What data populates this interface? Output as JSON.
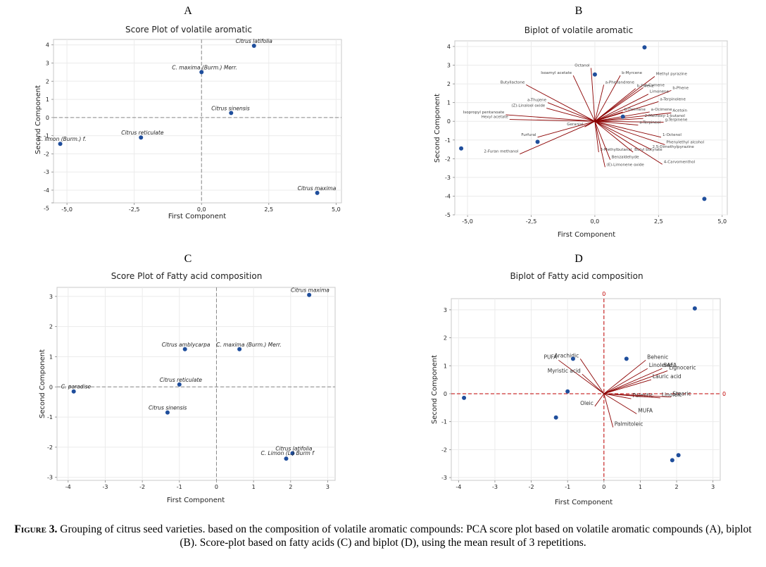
{
  "caption": {
    "label": "Figure 3.",
    "text": "Grouping of citrus seed varieties. based on the composition of volatile aromatic compounds: PCA score plot based on volatile aromatic compounds (A), biplot (B). Score-plot based on fatty acids (C) and biplot (D), using the mean result of 3 repetitions."
  },
  "chart_data": [
    {
      "panel": "A",
      "type": "scatter",
      "title": "Score Plot of volatile aromatic",
      "xlabel": "First Component",
      "ylabel": "Second Component",
      "xlim": [
        -5.5,
        5.2
      ],
      "ylim": [
        -4.7,
        4.3
      ],
      "xticks": [
        -5.0,
        -2.5,
        0.0,
        2.5,
        5.0
      ],
      "xtick_labels": [
        "-5,0",
        "-2,5",
        "0,0",
        "2,5",
        "5,0"
      ],
      "yticks": [
        -5,
        -4,
        -3,
        -2,
        -1,
        0,
        1,
        2,
        3,
        4
      ],
      "grid": true,
      "reference_lines": {
        "x": 0,
        "y": 0
      },
      "points": [
        {
          "label": "Citrus latifolia",
          "x": 1.95,
          "y": 3.95
        },
        {
          "label": "C. maxima (Burm.) Merr.",
          "x": 0.0,
          "y": 2.5
        },
        {
          "label": "Citrus sinensis",
          "x": 1.1,
          "y": 0.25
        },
        {
          "label": "Citrus reticulate",
          "x": -2.25,
          "y": -1.1
        },
        {
          "label": "C. limon (Burm.) f.",
          "x": -5.25,
          "y": -1.45
        },
        {
          "label": "Citrus maxima",
          "x": 4.3,
          "y": -4.15
        }
      ]
    },
    {
      "panel": "B",
      "type": "scatter",
      "title": "Biplot of volatile aromatic",
      "xlabel": "First Component",
      "ylabel": "Second Component",
      "xlim": [
        -5.5,
        5.2
      ],
      "ylim": [
        -5.0,
        4.3
      ],
      "xticks": [
        -5.0,
        -2.5,
        0.0,
        2.5,
        5.0
      ],
      "xtick_labels": [
        "-5,0",
        "-2,5",
        "0,0",
        "2,5",
        "5,0"
      ],
      "yticks": [
        -5,
        -4,
        -3,
        -2,
        -1,
        0,
        1,
        2,
        3,
        4
      ],
      "grid": true,
      "points": [
        {
          "x": 1.95,
          "y": 3.95
        },
        {
          "x": 0.0,
          "y": 2.5
        },
        {
          "x": 1.1,
          "y": 0.25
        },
        {
          "x": -2.25,
          "y": -1.1
        },
        {
          "x": -5.25,
          "y": -1.45
        },
        {
          "x": 4.3,
          "y": -4.15
        }
      ],
      "loadings": [
        {
          "label": "Octanol",
          "x": -0.15,
          "y": 2.85
        },
        {
          "label": "Isoamyl acetate",
          "x": -0.85,
          "y": 2.45
        },
        {
          "label": "b-Myrcene",
          "x": 1.0,
          "y": 2.45
        },
        {
          "label": "Methyl pyrazine",
          "x": 2.35,
          "y": 2.4
        },
        {
          "label": "a-Phellandrene",
          "x": 0.35,
          "y": 1.95
        },
        {
          "label": "Butyllactone",
          "x": -2.7,
          "y": 1.95
        },
        {
          "label": "b-Pinene",
          "x": 1.6,
          "y": 1.75
        },
        {
          "label": "p-Cymene",
          "x": 1.9,
          "y": 1.8
        },
        {
          "label": "b-Phene",
          "x": 3.0,
          "y": 1.65
        },
        {
          "label": "Limonene",
          "x": 2.1,
          "y": 1.45
        },
        {
          "label": "a-Terpinolene",
          "x": 2.5,
          "y": 1.05
        },
        {
          "label": "a-Thujene",
          "x": -1.85,
          "y": 1.0
        },
        {
          "label": "(Z)-Linalool oxide",
          "x": -1.9,
          "y": 0.7
        },
        {
          "label": "Isopropyl pentanoate",
          "x": -3.5,
          "y": 0.35
        },
        {
          "label": "Hexyl acetate",
          "x": -3.35,
          "y": 0.1
        },
        {
          "label": "Geranial",
          "x": -0.4,
          "y": -0.3
        },
        {
          "label": "b-Ocimene",
          "x": 1.1,
          "y": 0.5
        },
        {
          "label": "a-Ocimene",
          "x": 2.15,
          "y": 0.5
        },
        {
          "label": "Acetoin",
          "x": 3.0,
          "y": 0.45
        },
        {
          "label": "2-Methoxy-1-butanol",
          "x": 1.9,
          "y": 0.15
        },
        {
          "label": "g-Terpinene",
          "x": 2.7,
          "y": -0.05
        },
        {
          "label": "a-Terpineol",
          "x": 1.7,
          "y": -0.2
        },
        {
          "label": "Furfural",
          "x": -2.25,
          "y": -0.85
        },
        {
          "label": "2-Furan methanol",
          "x": -2.95,
          "y": -1.75
        },
        {
          "label": "1-Octenol",
          "x": 2.6,
          "y": -0.85
        },
        {
          "label": "Phenylethyl alcohol",
          "x": 2.75,
          "y": -1.25
        },
        {
          "label": "2,5-Dimethylpyrazine",
          "x": 2.2,
          "y": -1.5
        },
        {
          "label": "3-Methylbutanal",
          "x": 0.15,
          "y": -1.65
        },
        {
          "label": "Butyl butyrate",
          "x": 1.5,
          "y": -1.65
        },
        {
          "label": "Benzaldehyde",
          "x": 0.6,
          "y": -2.05
        },
        {
          "label": "(E)-Limonene oxide",
          "x": 0.4,
          "y": -2.45
        },
        {
          "label": "4-Carvomenthol",
          "x": 2.65,
          "y": -2.3
        }
      ]
    },
    {
      "panel": "C",
      "type": "scatter",
      "title": "Score Plot of Fatty acid composition",
      "xlabel": "First Component",
      "ylabel": "Second Component",
      "xlim": [
        -4.3,
        3.2
      ],
      "ylim": [
        -3.1,
        3.3
      ],
      "xticks": [
        -4,
        -3,
        -2,
        -1,
        0,
        1,
        2,
        3
      ],
      "yticks": [
        -3,
        -2,
        -1,
        0,
        1,
        2,
        3
      ],
      "grid": true,
      "reference_lines": {
        "x": 0,
        "y": 0
      },
      "points": [
        {
          "label": "Citrus maxima",
          "x": 2.5,
          "y": 3.05
        },
        {
          "label": "Citrus amblycarpa",
          "x": -0.85,
          "y": 1.25
        },
        {
          "label": "C. maxima (Burm.) Merr.",
          "x": 0.62,
          "y": 1.25
        },
        {
          "label": "Citrus reticulate",
          "x": -1.0,
          "y": 0.08
        },
        {
          "label": "C. paradise",
          "x": -3.85,
          "y": -0.15
        },
        {
          "label": "Citrus sinensis",
          "x": -1.32,
          "y": -0.85
        },
        {
          "label": "Citrus latifolia",
          "x": 2.05,
          "y": -2.2
        },
        {
          "label": "C. Limon (L.) Burm f",
          "x": 1.88,
          "y": -2.38
        }
      ]
    },
    {
      "panel": "D",
      "type": "scatter",
      "title": "Biplot of Fatty acid composition",
      "xlabel": "First Component",
      "ylabel": "Second Component",
      "xlim": [
        -4.2,
        3.2
      ],
      "ylim": [
        -3.1,
        3.4
      ],
      "xticks": [
        -4,
        -3,
        -2,
        -1,
        0,
        1,
        2,
        3
      ],
      "yticks": [
        -3,
        -2,
        -1,
        0,
        1,
        2,
        3
      ],
      "grid": true,
      "reference_lines": {
        "x": 0,
        "y": 0,
        "label": "0"
      },
      "points": [
        {
          "x": 2.5,
          "y": 3.05
        },
        {
          "x": -0.85,
          "y": 1.25
        },
        {
          "x": 0.62,
          "y": 1.25
        },
        {
          "x": -1.0,
          "y": 0.08
        },
        {
          "x": -3.85,
          "y": -0.15
        },
        {
          "x": -1.32,
          "y": -0.85
        },
        {
          "x": 2.05,
          "y": -2.2
        },
        {
          "x": 1.88,
          "y": -2.38
        }
      ],
      "loadings": [
        {
          "label": "PUFA",
          "x": -1.25,
          "y": 1.2
        },
        {
          "label": "Arachidic",
          "x": -0.65,
          "y": 1.25
        },
        {
          "label": "Myristic acid",
          "x": -0.6,
          "y": 0.7
        },
        {
          "label": "Behenic",
          "x": 1.15,
          "y": 1.2
        },
        {
          "label": "SAFA",
          "x": 1.6,
          "y": 0.9
        },
        {
          "label": "Linolenic",
          "x": 1.2,
          "y": 0.9
        },
        {
          "label": "Lignoceric",
          "x": 1.75,
          "y": 0.82
        },
        {
          "label": "Lauric acid",
          "x": 1.3,
          "y": 0.5
        },
        {
          "label": "Oleic",
          "x": -0.25,
          "y": -0.45
        },
        {
          "label": "Palmitic",
          "x": 0.75,
          "y": -0.18
        },
        {
          "label": "Linoleic",
          "x": 1.55,
          "y": -0.15
        },
        {
          "label": "Stearic",
          "x": 1.85,
          "y": -0.12
        },
        {
          "label": "MUFA",
          "x": 0.9,
          "y": -0.72
        },
        {
          "label": "Palmitoleic",
          "x": 0.25,
          "y": -1.2
        }
      ]
    }
  ]
}
